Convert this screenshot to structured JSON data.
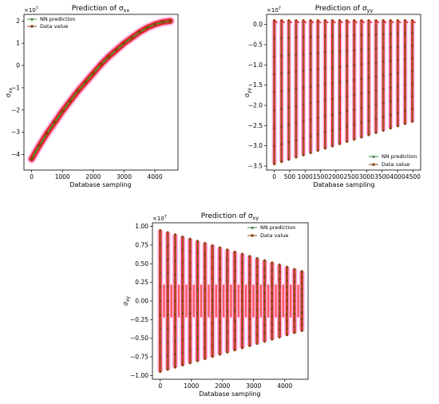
{
  "chart_data": [
    {
      "type": "line",
      "title": "Prediction of σ",
      "title_sub": "xx",
      "xlabel": "Database sampling",
      "ylabel": "σ",
      "ylabel_sub": "xx",
      "offset_text": "×10",
      "offset_exp": "7",
      "xlim": [
        -250,
        4750
      ],
      "ylim": [
        -4.7,
        2.3
      ],
      "xticks": [
        0,
        1000,
        2000,
        3000,
        4000
      ],
      "xtick_labels": [
        "0",
        "1000",
        "2000",
        "3000",
        "4000"
      ],
      "yticks": [
        -4,
        -3,
        -2,
        -1,
        0,
        1,
        2
      ],
      "ytick_labels": [
        "−4",
        "−3",
        "−2",
        "−1",
        "0",
        "1",
        "2"
      ],
      "grid": false,
      "legend_position": "top-left",
      "series": [
        {
          "name": "NN prediction",
          "color": "#2ca02c",
          "marker": "x"
        },
        {
          "name": "Data value",
          "color": "#8b4513",
          "marker": "o"
        }
      ],
      "data": {
        "x": [
          0,
          250,
          500,
          750,
          1000,
          1250,
          1500,
          1750,
          2000,
          2250,
          2500,
          2750,
          3000,
          3250,
          3500,
          3750,
          4000,
          4250,
          4500
        ],
        "y": [
          -4.2,
          -3.6,
          -3.05,
          -2.55,
          -2.05,
          -1.6,
          -1.15,
          -0.75,
          -0.35,
          0.05,
          0.4,
          0.7,
          1.0,
          1.25,
          1.5,
          1.7,
          1.85,
          1.95,
          2.0
        ]
      }
    },
    {
      "type": "line",
      "title": "Prediction of σ",
      "title_sub": "yy",
      "xlabel": "Database sampling",
      "ylabel": "σ",
      "ylabel_sub": "yy",
      "offset_text": "×10",
      "offset_exp": "7",
      "xlim": [
        -250,
        4750
      ],
      "ylim": [
        -3.6,
        0.25
      ],
      "xticks": [
        0,
        500,
        1000,
        1500,
        2000,
        2500,
        3000,
        3500,
        4000,
        4500
      ],
      "xtick_labels": [
        "0",
        "500",
        "1000",
        "1500",
        "2000",
        "2500",
        "3000",
        "3500",
        "4000",
        "4500"
      ],
      "yticks": [
        -3.5,
        -3.0,
        -2.5,
        -2.0,
        -1.5,
        -1.0,
        -0.5,
        0.0
      ],
      "ytick_labels": [
        "−3.5",
        "−3.0",
        "−2.5",
        "−2.0",
        "−1.5",
        "−1.0",
        "−0.5",
        "0.0"
      ],
      "grid": false,
      "legend_position": "bottom-right",
      "series": [
        {
          "name": "NN prediction",
          "color": "#2ca02c",
          "marker": "x"
        },
        {
          "name": "Data value",
          "color": "#8b4513",
          "marker": "o"
        }
      ],
      "cycles": {
        "count": 20,
        "x_start": 0,
        "x_end": 4480,
        "top": 0.1,
        "bottom_first": -3.45,
        "bottom_last": -2.4
      }
    },
    {
      "type": "line",
      "title": "Prediction of σ",
      "title_sub": "xy",
      "xlabel": "Database sampling",
      "ylabel": "σ",
      "ylabel_sub": "xy",
      "offset_text": "×10",
      "offset_exp": "7",
      "xlim": [
        -250,
        4750
      ],
      "ylim": [
        -1.05,
        1.05
      ],
      "xticks": [
        0,
        1000,
        2000,
        3000,
        4000
      ],
      "xtick_labels": [
        "0",
        "1000",
        "2000",
        "3000",
        "4000"
      ],
      "yticks": [
        -1.0,
        -0.75,
        -0.5,
        -0.25,
        0.0,
        0.25,
        0.5,
        0.75,
        1.0
      ],
      "ytick_labels": [
        "−1.00",
        "−0.75",
        "−0.50",
        "−0.25",
        "0.00",
        "0.25",
        "0.50",
        "0.75",
        "1.00"
      ],
      "grid": false,
      "legend_position": "top-right",
      "series": [
        {
          "name": "NN prediction",
          "color": "#2ca02c",
          "marker": "x"
        },
        {
          "name": "Data value",
          "color": "#8b4513",
          "marker": "o"
        }
      ],
      "cycles": {
        "count": 20,
        "x_start": 0,
        "x_end": 4550,
        "amp_first": 0.95,
        "amp_last": 0.4
      }
    }
  ]
}
